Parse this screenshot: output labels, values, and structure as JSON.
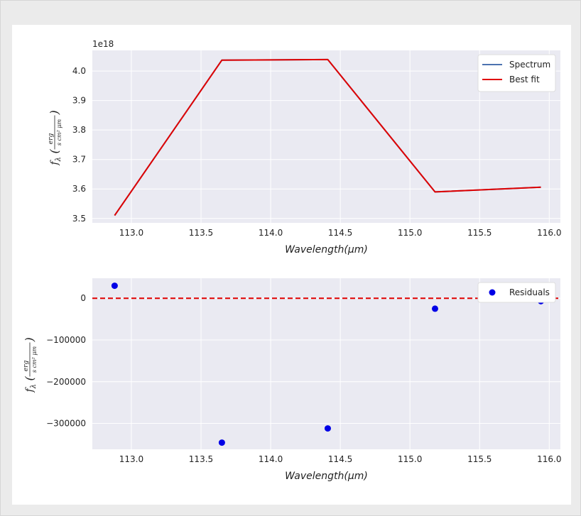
{
  "chart_data": [
    {
      "type": "line",
      "xlabel": "Wavelength(μm)",
      "ylabel": "f_λ(erg / s cm² μm)",
      "y_offset_label": "1e18",
      "xlim": [
        112.72,
        116.08
      ],
      "ylim": [
        3.485,
        4.07
      ],
      "x_ticks": [
        113.0,
        113.5,
        114.0,
        114.5,
        115.0,
        115.5,
        116.0
      ],
      "x_tick_labels": [
        "113.0",
        "113.5",
        "114.0",
        "114.5",
        "115.0",
        "115.5",
        "116.0"
      ],
      "y_ticks": [
        3.5,
        3.6,
        3.7,
        3.8,
        3.9,
        4.0
      ],
      "y_tick_labels": [
        "3.5",
        "3.6",
        "3.7",
        "3.8",
        "3.9",
        "4.0"
      ],
      "grid": true,
      "legend_position": "upper-right",
      "series": [
        {
          "name": "Spectrum",
          "color": "#4c72b0",
          "x": [
            112.88,
            113.65,
            114.41,
            115.18,
            115.94
          ],
          "y": [
            3.51,
            4.037,
            4.039,
            3.59,
            3.606
          ]
        },
        {
          "name": "Best fit",
          "color": "#e00000",
          "x": [
            112.88,
            113.65,
            114.41,
            115.18,
            115.94
          ],
          "y": [
            3.51,
            4.037,
            4.039,
            3.59,
            3.606
          ]
        }
      ]
    },
    {
      "type": "scatter",
      "xlabel": "Wavelength(μm)",
      "ylabel": "f_λ(erg / s cm² μm)",
      "xlim": [
        112.72,
        116.08
      ],
      "ylim": [
        -362000,
        48000
      ],
      "x_ticks": [
        113.0,
        113.5,
        114.0,
        114.5,
        115.0,
        115.5,
        116.0
      ],
      "x_tick_labels": [
        "113.0",
        "113.5",
        "114.0",
        "114.5",
        "115.0",
        "115.5",
        "116.0"
      ],
      "y_ticks": [
        0,
        -100000,
        -200000,
        -300000
      ],
      "y_tick_labels": [
        "0",
        "−100000",
        "−200000",
        "−300000"
      ],
      "grid": true,
      "legend_position": "upper-right",
      "reference_line": {
        "y": 0,
        "color": "#e00000",
        "style": "dashed"
      },
      "series": [
        {
          "name": "Residuals",
          "color": "#0000e6",
          "x": [
            112.88,
            113.65,
            114.41,
            115.18,
            115.94
          ],
          "y": [
            30000,
            -346000,
            -312000,
            -25000,
            -7000
          ]
        }
      ]
    }
  ]
}
